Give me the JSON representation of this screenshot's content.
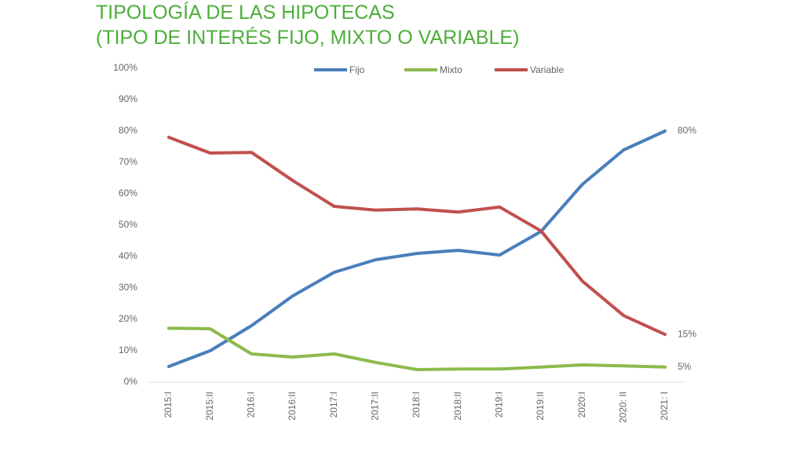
{
  "chart_data": {
    "type": "line",
    "title": "TIPOLOGÍA DE LAS HIPOTECAS",
    "subtitle": "(TIPO DE INTERÉS FIJO, MIXTO O VARIABLE)",
    "categories": [
      "2015:I",
      "2015:II",
      "2016:I",
      "2016:II",
      "2017:I",
      "2017:II",
      "2018:I",
      "2018:II",
      "2019:I",
      "2019:II",
      "2020:I",
      "2020: II",
      "2021: I"
    ],
    "series": [
      {
        "name": "Fijo",
        "color": "#4a7ebb",
        "values": [
          5,
          10,
          18,
          27.5,
          35,
          39,
          41,
          42,
          40.5,
          48,
          63,
          74,
          80
        ],
        "value_labels": [
          null,
          null,
          null,
          null,
          null,
          null,
          null,
          null,
          null,
          null,
          null,
          null,
          "80%"
        ]
      },
      {
        "name": "Mixto",
        "color": "#8dba4c",
        "values": [
          17.2,
          17,
          9,
          8,
          9,
          6.3,
          4,
          4.2,
          4.2,
          4.8,
          5.5,
          5.2,
          4.8
        ],
        "value_labels": [
          null,
          null,
          null,
          null,
          null,
          null,
          null,
          null,
          null,
          null,
          null,
          null,
          "5%"
        ]
      },
      {
        "name": "Variable",
        "color": "#c0504d",
        "values": [
          78,
          73,
          73.2,
          64.2,
          56,
          54.8,
          55.2,
          54.2,
          55.8,
          48.2,
          32.2,
          21.2,
          15.2
        ],
        "value_labels": [
          null,
          null,
          null,
          null,
          null,
          null,
          null,
          null,
          null,
          null,
          null,
          null,
          "15%"
        ]
      }
    ],
    "ylim": [
      0,
      100
    ],
    "yticks": [
      {
        "value": 0,
        "label": "0%"
      },
      {
        "value": 10,
        "label": "10%"
      },
      {
        "value": 20,
        "label": "20%"
      },
      {
        "value": 30,
        "label": "30%"
      },
      {
        "value": 40,
        "label": "40%"
      },
      {
        "value": 50,
        "label": "50%"
      },
      {
        "value": 60,
        "label": "60%"
      },
      {
        "value": 70,
        "label": "70%"
      },
      {
        "value": 80,
        "label": "80%"
      },
      {
        "value": 90,
        "label": "90%"
      },
      {
        "value": 100,
        "label": "100%"
      }
    ],
    "grid": false,
    "legend": "top"
  }
}
